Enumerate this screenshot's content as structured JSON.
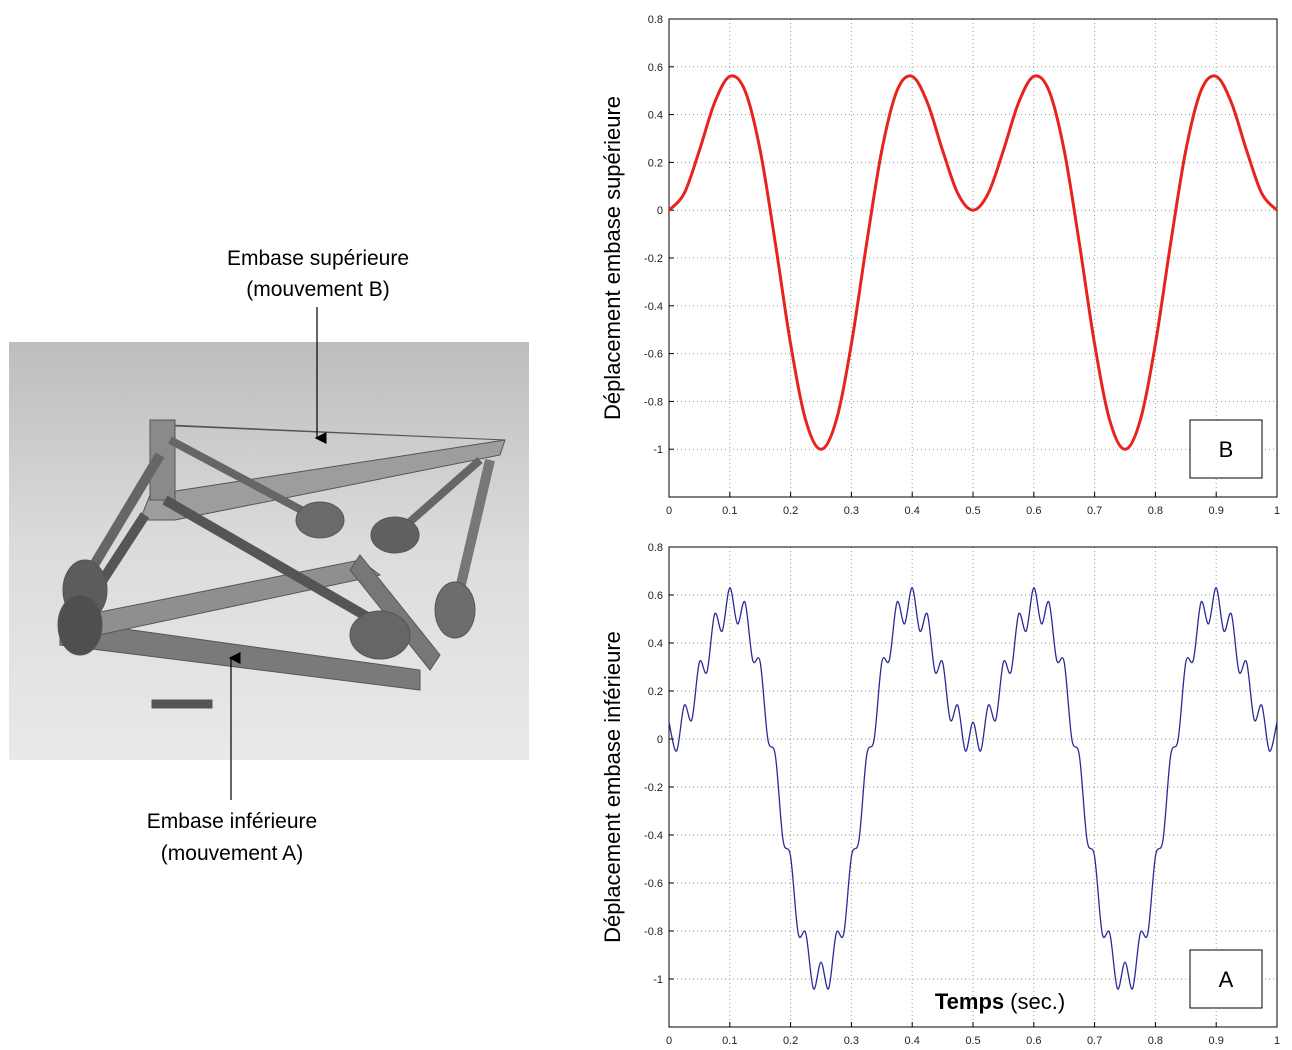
{
  "photo": {
    "label_top": [
      "Embase supérieure",
      "(mouvement B)"
    ],
    "label_bottom": [
      "Embase inférieure",
      "(mouvement A)"
    ]
  },
  "chart_data": [
    {
      "type": "line",
      "y_label": "Déplacement embase supérieure",
      "box_label": "B",
      "x": [
        0,
        0.025,
        0.05,
        0.075,
        0.1,
        0.125,
        0.15,
        0.175,
        0.2,
        0.225,
        0.25,
        0.275,
        0.3,
        0.325,
        0.35,
        0.375,
        0.4,
        0.425,
        0.45,
        0.475,
        0.5,
        0.525,
        0.55,
        0.575,
        0.6,
        0.625,
        0.65,
        0.675,
        0.7,
        0.725,
        0.75,
        0.775,
        0.8,
        0.825,
        0.85,
        0.875,
        0.9,
        0.925,
        0.95,
        0.975,
        1
      ],
      "series": [
        {
          "color": "#e8231d",
          "values": [
            0,
            0.07,
            0.25,
            0.45,
            0.56,
            0.5,
            0.25,
            -0.14,
            -0.56,
            -0.88,
            -1,
            -0.88,
            -0.56,
            -0.14,
            0.25,
            0.5,
            0.56,
            0.45,
            0.25,
            0.07,
            0,
            0.07,
            0.25,
            0.45,
            0.56,
            0.5,
            0.25,
            -0.14,
            -0.56,
            -0.88,
            -1,
            -0.88,
            -0.56,
            -0.14,
            0.25,
            0.5,
            0.56,
            0.45,
            0.25,
            0.07,
            0
          ]
        }
      ],
      "xlim": [
        0,
        1
      ],
      "ylim": [
        -1.2,
        0.8
      ],
      "xticks": [
        0,
        0.1,
        0.2,
        0.3,
        0.4,
        0.5,
        0.6,
        0.7,
        0.8,
        0.9,
        1
      ],
      "yticks": [
        -1,
        -0.8,
        -0.6,
        -0.4,
        -0.2,
        0,
        0.2,
        0.4,
        0.6,
        0.8
      ],
      "grid": true
    },
    {
      "type": "line",
      "y_label": "Déplacement embase inférieure",
      "box_label": "A",
      "x_label": [
        "Temps",
        "(sec.)"
      ],
      "x": [
        0,
        0.0125,
        0.025,
        0.0375,
        0.05,
        0.0625,
        0.075,
        0.0875,
        0.1,
        0.1125,
        0.125,
        0.1375,
        0.15,
        0.1625,
        0.175,
        0.1875,
        0.2,
        0.2125,
        0.225,
        0.2375,
        0.25,
        0.2625,
        0.275,
        0.2875,
        0.3,
        0.3125,
        0.325,
        0.3375,
        0.35,
        0.3625,
        0.375,
        0.3875,
        0.4,
        0.4125,
        0.425,
        0.4375,
        0.45,
        0.4625,
        0.475,
        0.4875,
        0.5,
        0.5125,
        0.525,
        0.5375,
        0.55,
        0.5625,
        0.575,
        0.5875,
        0.6,
        0.6125,
        0.625,
        0.6375,
        0.65,
        0.6625,
        0.675,
        0.6875,
        0.7,
        0.7125,
        0.725,
        0.7375,
        0.75,
        0.7625,
        0.775,
        0.7875,
        0.8,
        0.8125,
        0.825,
        0.8375,
        0.85,
        0.8625,
        0.875,
        0.8875,
        0.9,
        0.9125,
        0.925,
        0.9375,
        0.95,
        0.9625,
        0.975,
        0.9875,
        1
      ],
      "series": [
        {
          "color": "#2b2a96",
          "values": [
            0.07,
            -0.05,
            0.14,
            0.08,
            0.32,
            0.28,
            0.52,
            0.45,
            0.63,
            0.48,
            0.57,
            0.33,
            0.32,
            0,
            -0.07,
            -0.42,
            -0.49,
            -0.81,
            -0.81,
            -1.04,
            -0.93,
            -1.04,
            -0.81,
            -0.81,
            -0.49,
            -0.42,
            -0.07,
            0,
            0.32,
            0.33,
            0.57,
            0.48,
            0.63,
            0.45,
            0.52,
            0.28,
            0.32,
            0.08,
            0.14,
            -0.05,
            0.07,
            -0.05,
            0.14,
            0.08,
            0.32,
            0.28,
            0.52,
            0.45,
            0.63,
            0.48,
            0.57,
            0.33,
            0.32,
            0,
            -0.07,
            -0.42,
            -0.49,
            -0.81,
            -0.81,
            -1.04,
            -0.93,
            -1.04,
            -0.81,
            -0.81,
            -0.49,
            -0.42,
            -0.07,
            0,
            0.32,
            0.33,
            0.57,
            0.48,
            0.63,
            0.45,
            0.52,
            0.28,
            0.32,
            0.08,
            0.14,
            -0.05,
            0.07
          ]
        }
      ],
      "xlim": [
        0,
        1
      ],
      "ylim": [
        -1.2,
        0.8
      ],
      "xticks": [
        0,
        0.1,
        0.2,
        0.3,
        0.4,
        0.5,
        0.6,
        0.7,
        0.8,
        0.9,
        1
      ],
      "yticks": [
        -1,
        -0.8,
        -0.6,
        -0.4,
        -0.2,
        0,
        0.2,
        0.4,
        0.6,
        0.8
      ],
      "grid": true
    }
  ]
}
